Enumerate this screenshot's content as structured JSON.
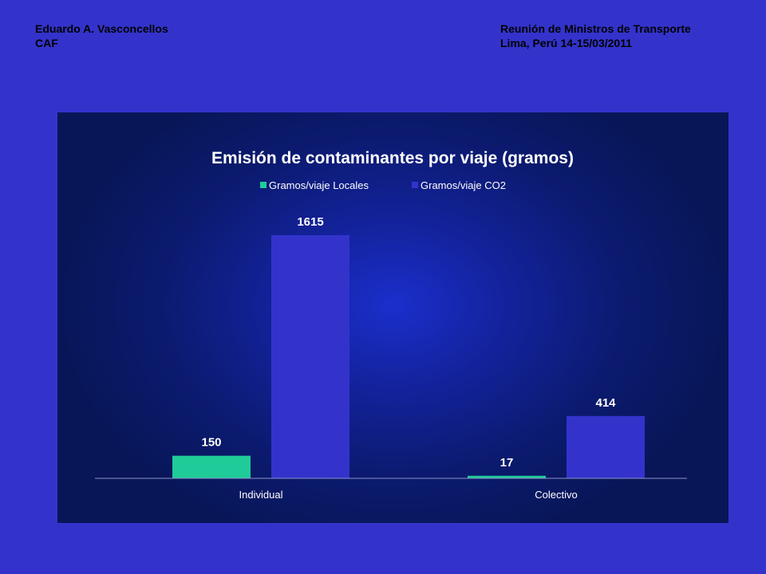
{
  "header": {
    "left_line1": "Eduardo A. Vasconcellos",
    "left_line2": "CAF",
    "right_line1": "Reunión de Ministros  de Transporte",
    "right_line2": "Lima, Perú 14-15/03/2011"
  },
  "colors": {
    "slide_background": "#3333cc",
    "series_locales": "#1fcc99",
    "series_co2": "#3333cc"
  },
  "chart_data": {
    "type": "bar",
    "title": "Emisión de contaminantes por viaje (gramos)",
    "categories": [
      "Individual",
      "Colectivo"
    ],
    "series": [
      {
        "name": "Gramos/viaje Locales",
        "values": [
          150,
          17
        ],
        "color": "#1fcc99"
      },
      {
        "name": "Gramos/viaje CO2",
        "values": [
          1615,
          414
        ],
        "color": "#3333cc"
      }
    ],
    "xlabel": "",
    "ylabel": "",
    "ylim": [
      0,
      1615
    ],
    "grid": false,
    "legend_position": "top",
    "data_labels": true
  }
}
